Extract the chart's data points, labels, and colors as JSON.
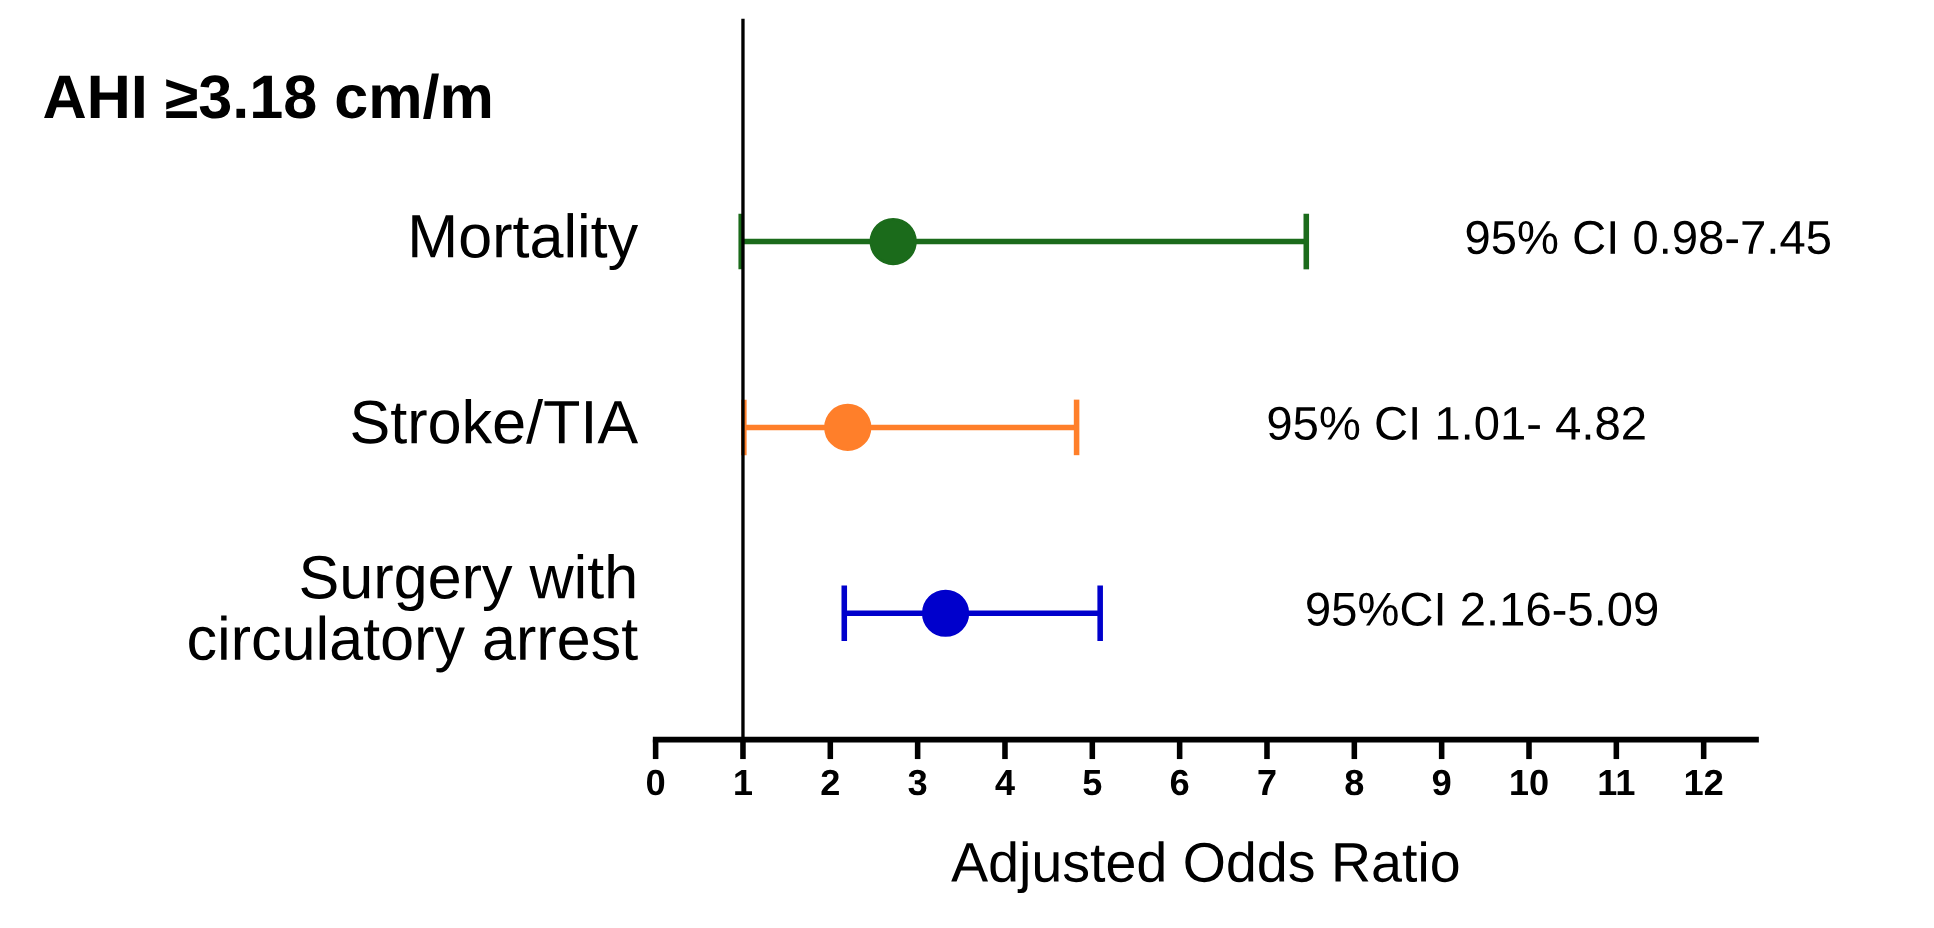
{
  "chart_data": {
    "type": "scatter",
    "orientation": "horizontal",
    "title": "AHI ≥3.18 cm/m",
    "xlabel": "Adjusted Odds Ratio",
    "categories": [
      "Mortality",
      "Stroke/TIA",
      "Surgery with\ncirculatory arrest"
    ],
    "values": [
      2.72,
      2.2,
      3.32
    ],
    "colors": [
      "#1b6b1b",
      "#ff7f2a",
      "#0000cc"
    ],
    "errors": [
      [
        0.98,
        7.45
      ],
      [
        1.01,
        4.82
      ],
      [
        2.16,
        5.09
      ]
    ],
    "xlim": [
      0,
      12.6
    ],
    "xticks": [
      0,
      1,
      2,
      3,
      4,
      5,
      6,
      7,
      8,
      9,
      10,
      11,
      12
    ],
    "annotations": [
      "95% CI 0.98-7.45",
      "95% CI 1.01- 4.82",
      "95%CI 2.16-5.09"
    ],
    "marker": "circle",
    "grid": false
  }
}
